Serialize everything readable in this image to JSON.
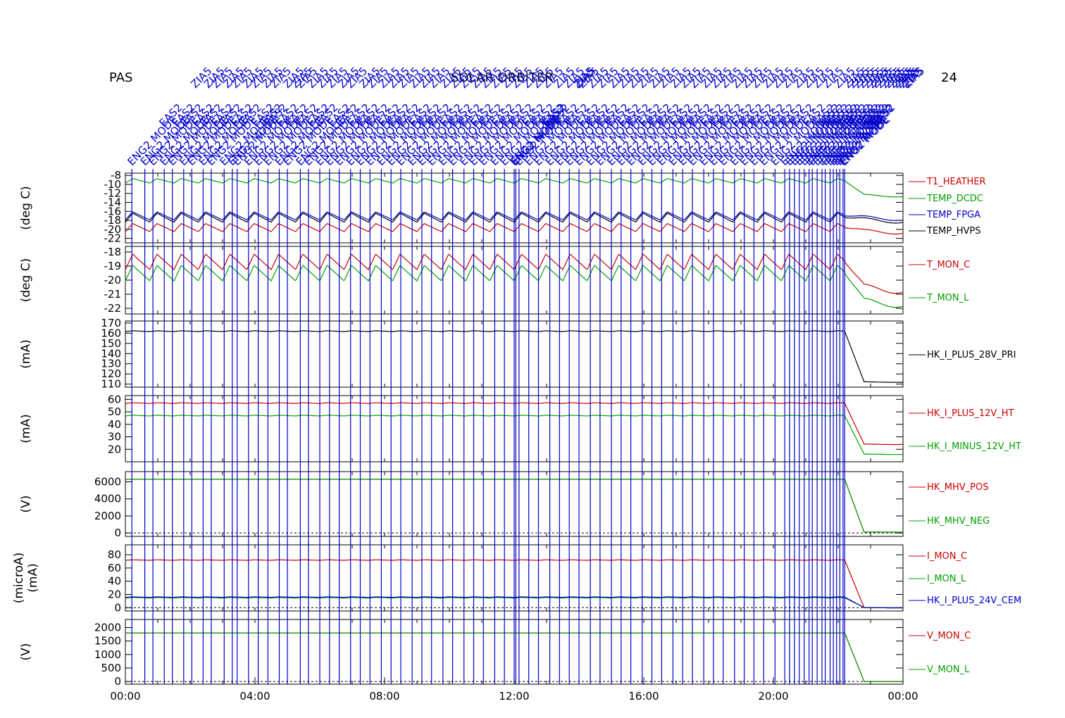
{
  "header": {
    "left_label": "PAS",
    "center_label": "SOLAR ORBITER",
    "right_label": "24"
  },
  "colors": {
    "red": "#cc0000",
    "green": "#00a000",
    "blue": "#0000cc",
    "black": "#000000"
  },
  "annotations": {
    "rotated_text": [
      "ENG2 MODE",
      "EAS2",
      "ZIA5"
    ],
    "note": ""
  },
  "chart_data": {
    "type": "line",
    "x_ticks": [
      "00:00",
      "04:00",
      "08:00",
      "12:00",
      "16:00",
      "20:00",
      "00:00"
    ],
    "x_range_hours": [
      0,
      24
    ],
    "event_lines_hours": [
      0.2,
      0.6,
      0.85,
      1.2,
      1.45,
      1.8,
      2.05,
      2.4,
      2.65,
      3.05,
      3.3,
      3.45,
      3.8,
      4.1,
      4.4,
      4.75,
      5.0,
      5.4,
      5.65,
      6.0,
      6.3,
      6.6,
      6.95,
      7.25,
      7.55,
      7.9,
      8.2,
      8.5,
      8.85,
      9.15,
      9.45,
      9.8,
      10.1,
      10.45,
      10.75,
      11.05,
      11.4,
      11.7,
      12.0,
      12.05,
      12.15,
      12.45,
      12.75,
      13.1,
      13.4,
      13.7,
      14.0,
      14.35,
      14.65,
      15.0,
      15.3,
      15.6,
      15.95,
      16.25,
      16.55,
      16.9,
      17.2,
      17.5,
      17.85,
      18.15,
      18.45,
      18.8,
      19.1,
      19.4,
      19.7,
      20.05,
      20.35,
      20.5,
      20.65,
      20.8,
      20.95,
      21.1,
      21.2,
      21.35,
      21.5,
      21.6,
      21.75,
      21.85,
      21.95,
      22.05,
      22.15,
      22.2
    ],
    "panels": [
      {
        "ylabel": "(deg C)",
        "yticks": [
          "-8",
          "-10",
          "-12",
          "-14",
          "-16",
          "-18",
          "-20",
          "-22"
        ],
        "ylim": [
          -23,
          -7.5
        ],
        "series": [
          {
            "name": "T1_HEATHER",
            "color": "#cc0000",
            "base": -19.6,
            "amp": 0.9,
            "period_h": 0.75,
            "after": -20.5
          },
          {
            "name": "TEMP_DCDC",
            "color": "#00a000",
            "base": -9.2,
            "amp": 0.5,
            "period_h": 0.75,
            "after": -12.5
          },
          {
            "name": "TEMP_FPGA",
            "color": "#0000cc",
            "base": -17.0,
            "amp": 0.9,
            "period_h": 0.75,
            "after": -17.5
          },
          {
            "name": "TEMP_HVPS",
            "color": "#000000",
            "base": -17.4,
            "amp": 1.0,
            "period_h": 0.75,
            "after": -18.0
          }
        ]
      },
      {
        "ylabel": "(deg C)",
        "yticks": [
          "-18",
          "-19",
          "-20",
          "-21",
          "-22"
        ],
        "ylim": [
          -22.4,
          -17.6
        ],
        "series": [
          {
            "name": "T_MON_C",
            "color": "#cc0000",
            "base": -18.7,
            "amp": 0.55,
            "period_h": 0.75,
            "after": -20.6
          },
          {
            "name": "T_MON_L",
            "color": "#00a000",
            "base": -19.5,
            "amp": 0.55,
            "period_h": 0.75,
            "after": -21.6
          }
        ]
      },
      {
        "ylabel": "(mA)",
        "yticks": [
          "170",
          "160",
          "150",
          "140",
          "130",
          "120",
          "110"
        ],
        "ylim": [
          107,
          172
        ],
        "series": [
          {
            "name": "HK_I_PLUS_28V_PRI",
            "color": "#000000",
            "base": 162,
            "amp": 0.4,
            "period_h": 0.75,
            "after": 112
          }
        ]
      },
      {
        "ylabel": "(mA)",
        "yticks": [
          "60",
          "50",
          "40",
          "30",
          "20"
        ],
        "ylim": [
          10,
          63
        ],
        "series": [
          {
            "name": "HK_I_PLUS_12V_HT",
            "color": "#cc0000",
            "base": 57,
            "amp": 0.3,
            "period_h": 0.75,
            "after": 24
          },
          {
            "name": "HK_I_MINUS_12V_HT",
            "color": "#00a000",
            "base": 47,
            "amp": 0.3,
            "period_h": 0.75,
            "after": 16
          }
        ]
      },
      {
        "ylabel": "(V)",
        "yticks": [
          "6000",
          "4000",
          "2000",
          "0"
        ],
        "ylim": [
          -400,
          7200
        ],
        "series": [
          {
            "name": "HK_MHV_POS",
            "color": "#cc0000",
            "base": 6300,
            "amp": 5,
            "period_h": 0.75,
            "after": 100
          },
          {
            "name": "HK_MHV_NEG",
            "color": "#00a000",
            "base": 6300,
            "amp": 5,
            "period_h": 0.75,
            "after": 100
          }
        ]
      },
      {
        "ylabel": "(microA)\n(mA)",
        "yticks": [
          "80",
          "60",
          "40",
          "20",
          "0"
        ],
        "ylim": [
          -5,
          95
        ],
        "series": [
          {
            "name": "I_MON_C",
            "color": "#cc0000",
            "base": 72,
            "amp": 0.4,
            "period_h": 0.75,
            "after": 0
          },
          {
            "name": "I_MON_L",
            "color": "#00a000",
            "base": 15,
            "amp": 0.4,
            "period_h": 0.75,
            "after": 0
          },
          {
            "name": "HK_I_PLUS_24V_CEM",
            "color": "#0000cc",
            "base": 16,
            "amp": 0.4,
            "period_h": 0.75,
            "after": 0
          }
        ]
      },
      {
        "ylabel": "(V)",
        "yticks": [
          "2000",
          "1500",
          "1000",
          "500",
          "0"
        ],
        "ylim": [
          -100,
          2300
        ],
        "series": [
          {
            "name": "V_MON_C",
            "color": "#cc0000",
            "base": 1800,
            "amp": 3,
            "period_h": 0.75,
            "after": 0
          },
          {
            "name": "V_MON_L",
            "color": "#00a000",
            "base": 1800,
            "amp": 3,
            "period_h": 0.75,
            "after": 0
          }
        ]
      }
    ]
  }
}
